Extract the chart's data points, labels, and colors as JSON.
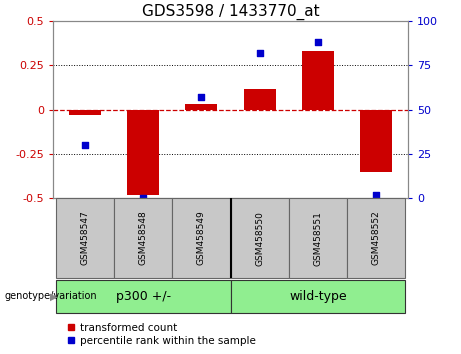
{
  "title": "GDS3598 / 1433770_at",
  "samples": [
    "GSM458547",
    "GSM458548",
    "GSM458549",
    "GSM458550",
    "GSM458551",
    "GSM458552"
  ],
  "red_bars": [
    -0.03,
    -0.48,
    0.03,
    0.12,
    0.33,
    -0.35
  ],
  "blue_dots": [
    30,
    0,
    57,
    82,
    88,
    2
  ],
  "ylim_left": [
    -0.5,
    0.5
  ],
  "ylim_right": [
    0,
    100
  ],
  "yticks_left": [
    -0.5,
    -0.25,
    0,
    0.25,
    0.5
  ],
  "yticks_right": [
    0,
    25,
    50,
    75,
    100
  ],
  "group_label": "genotype/variation",
  "bar_color": "#CC0000",
  "dot_color": "#0000CC",
  "zero_line_color": "#CC0000",
  "grid_color": "#000000",
  "bg_color": "#FFFFFF",
  "plot_bg": "#FFFFFF",
  "label_bg": "#C8C8C8",
  "group_color": "#90EE90",
  "legend_red": "transformed count",
  "legend_blue": "percentile rank within the sample",
  "bar_width": 0.55,
  "title_fontsize": 11,
  "tick_fontsize": 8,
  "sample_fontsize": 6.5,
  "group_fontsize": 9,
  "legend_fontsize": 7.5,
  "p300_label": "p300 +/-",
  "wt_label": "wild-type",
  "n_p300": 3,
  "n_wt": 3
}
